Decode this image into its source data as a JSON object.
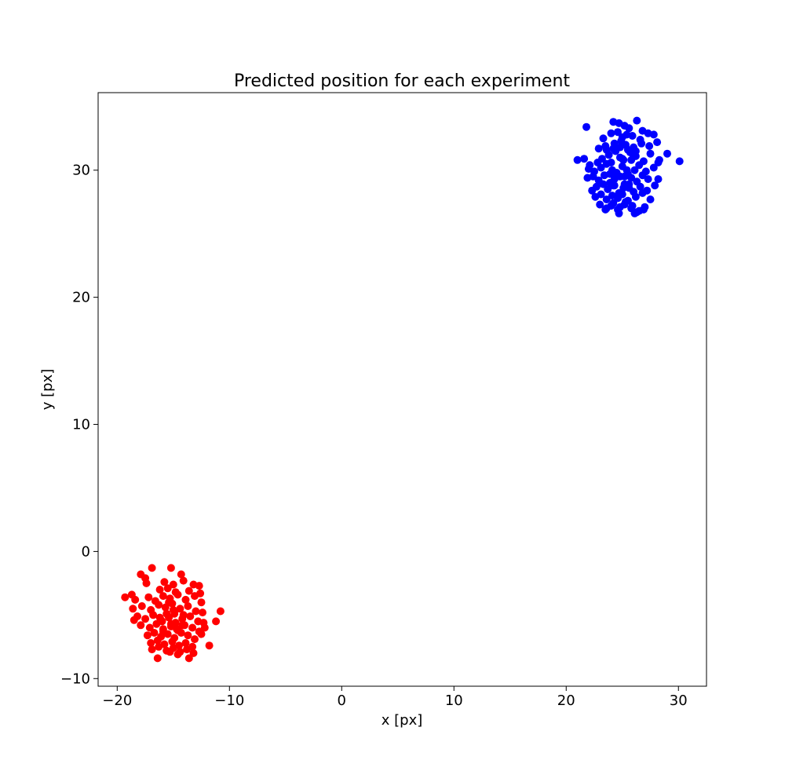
{
  "chart_data": {
    "type": "scatter",
    "title": "Predicted position for each experiment",
    "xlabel": "x [px]",
    "ylabel": "y [px]",
    "xlim": [
      -21.7,
      32.5
    ],
    "ylim": [
      -10.6,
      36.1
    ],
    "xticks": [
      -20,
      -10,
      0,
      10,
      20,
      30
    ],
    "yticks": [
      -10,
      0,
      10,
      20,
      30
    ],
    "xtick_labels": [
      "−20",
      "−10",
      "0",
      "10",
      "20",
      "30"
    ],
    "ytick_labels": [
      "−10",
      "0",
      "10",
      "20",
      "30"
    ],
    "grid": false,
    "series": [
      {
        "color": "#0000ff",
        "x": [
          21.8,
          24.2,
          24.7,
          25.2,
          25.6,
          26.3,
          26.8,
          27.8,
          23.3,
          24.0,
          24.6,
          25.0,
          25.4,
          25.9,
          26.6,
          27.3,
          28.1,
          22.9,
          23.5,
          24.3,
          24.9,
          25.3,
          26.0,
          26.7,
          27.4,
          29.0,
          21.0,
          21.6,
          22.1,
          22.8,
          23.2,
          23.8,
          24.4,
          24.8,
          25.1,
          25.7,
          26.2,
          26.9,
          27.5,
          28.3,
          30.1,
          22.0,
          22.5,
          23.1,
          23.6,
          24.1,
          24.5,
          25.0,
          25.5,
          26.1,
          26.5,
          27.1,
          27.8,
          28.2,
          21.9,
          22.4,
          22.9,
          23.4,
          23.9,
          24.3,
          24.8,
          25.2,
          25.8,
          26.3,
          26.8,
          27.3,
          28.2,
          22.3,
          22.7,
          23.3,
          23.7,
          24.2,
          24.7,
          25.1,
          25.6,
          26.0,
          26.6,
          27.2,
          27.9,
          22.6,
          23.1,
          23.6,
          24.1,
          24.6,
          25.0,
          25.5,
          26.2,
          26.8,
          27.5,
          23.0,
          23.6,
          24.2,
          24.8,
          25.3,
          25.9,
          26.5,
          27.0,
          23.5,
          24.0,
          24.6,
          25.2,
          25.8,
          26.3,
          26.9,
          23.6,
          24.2,
          24.8,
          25.5,
          26.2,
          24.7,
          26.1,
          24.0,
          25.0,
          25.2,
          24.5,
          25.6,
          24.9,
          25.4,
          24.3,
          25.8,
          23.9,
          26.0
        ],
        "y": [
          33.4,
          33.8,
          33.7,
          33.5,
          33.3,
          33.9,
          33.1,
          32.8,
          32.5,
          32.9,
          33.0,
          32.6,
          32.8,
          32.7,
          32.4,
          32.9,
          32.2,
          31.7,
          31.9,
          32.1,
          32.3,
          32.0,
          31.8,
          32.1,
          31.9,
          31.3,
          30.8,
          30.9,
          30.4,
          30.6,
          30.9,
          31.2,
          31.5,
          31.0,
          30.8,
          31.4,
          31.1,
          30.7,
          31.3,
          30.8,
          30.7,
          30.1,
          29.9,
          30.2,
          30.5,
          30.0,
          29.8,
          30.3,
          29.7,
          30.0,
          30.4,
          29.9,
          30.2,
          30.6,
          29.4,
          29.5,
          29.2,
          29.6,
          29.0,
          29.3,
          29.5,
          28.9,
          29.4,
          29.1,
          29.6,
          29.3,
          29.3,
          28.4,
          28.7,
          28.9,
          28.5,
          28.8,
          28.2,
          28.6,
          28.9,
          28.3,
          28.7,
          28.4,
          28.8,
          27.9,
          28.1,
          27.7,
          28.0,
          27.8,
          28.1,
          27.6,
          27.9,
          28.2,
          27.7,
          27.3,
          27.0,
          27.4,
          27.1,
          27.5,
          27.2,
          26.8,
          27.1,
          26.9,
          27.2,
          26.9,
          27.3,
          27.0,
          26.7,
          26.9,
          31.6,
          31.7,
          31.8,
          31.6,
          31.5,
          26.6,
          26.6,
          30.6,
          30.9,
          29.5,
          29.6,
          28.6,
          28.2,
          30.0,
          28.8,
          30.8,
          29.7,
          31.2
        ]
      },
      {
        "color": "#ff0000",
        "x": [
          -15.2,
          -16.9,
          -17.9,
          -17.5,
          -14.3,
          -13.2,
          -17.4,
          -15.8,
          -15.0,
          -14.1,
          -12.7,
          -19.3,
          -18.7,
          -16.2,
          -15.5,
          -14.8,
          -13.6,
          -12.6,
          -18.4,
          -17.2,
          -16.6,
          -15.9,
          -15.3,
          -14.6,
          -13.9,
          -13.1,
          -12.5,
          -10.8,
          -18.6,
          -17.8,
          -17.0,
          -16.3,
          -15.7,
          -15.1,
          -14.4,
          -13.7,
          -13.0,
          -12.4,
          -11.2,
          -18.2,
          -17.5,
          -16.8,
          -16.1,
          -15.4,
          -14.9,
          -14.2,
          -13.5,
          -12.8,
          -12.3,
          -17.9,
          -17.1,
          -16.5,
          -15.9,
          -15.2,
          -14.6,
          -14.0,
          -13.3,
          -12.7,
          -12.2,
          -17.3,
          -16.7,
          -16.1,
          -15.5,
          -14.9,
          -14.3,
          -13.7,
          -13.1,
          -12.5,
          -18.5,
          -17.0,
          -16.4,
          -15.8,
          -15.1,
          -14.5,
          -13.9,
          -13.3,
          -11.8,
          -16.9,
          -16.3,
          -15.6,
          -15.0,
          -14.4,
          -13.8,
          -13.2,
          -16.4,
          -15.3,
          -14.6,
          -13.6,
          -15.6,
          -14.8,
          -16.2,
          -15.0,
          -14.2,
          -14.7,
          -15.4,
          -15.9,
          -14.1,
          -16.0,
          -15.2,
          -14.9
        ],
        "y": [
          -1.3,
          -1.3,
          -1.8,
          -2.1,
          -1.8,
          -2.6,
          -2.5,
          -2.4,
          -2.6,
          -2.3,
          -2.7,
          -3.6,
          -3.4,
          -3.0,
          -2.9,
          -3.2,
          -3.1,
          -3.3,
          -3.8,
          -3.6,
          -3.9,
          -3.5,
          -3.7,
          -3.4,
          -3.8,
          -3.5,
          -4.0,
          -4.7,
          -4.5,
          -4.3,
          -4.6,
          -4.2,
          -4.4,
          -4.1,
          -4.5,
          -4.3,
          -4.7,
          -4.8,
          -5.5,
          -5.1,
          -5.3,
          -5.0,
          -5.4,
          -5.2,
          -4.9,
          -5.3,
          -5.1,
          -5.5,
          -5.6,
          -5.8,
          -6.0,
          -5.7,
          -6.1,
          -5.9,
          -6.2,
          -5.8,
          -6.0,
          -6.3,
          -6.0,
          -6.6,
          -6.4,
          -6.7,
          -6.5,
          -6.8,
          -6.4,
          -6.6,
          -6.9,
          -6.5,
          -5.4,
          -7.2,
          -7.0,
          -7.3,
          -7.1,
          -7.4,
          -7.2,
          -7.5,
          -7.4,
          -7.7,
          -7.5,
          -7.8,
          -7.6,
          -7.9,
          -7.7,
          -8.0,
          -8.4,
          -7.9,
          -8.1,
          -8.4,
          -4.9,
          -5.6,
          -5.2,
          -4.6,
          -5.8,
          -6.1,
          -4.0,
          -6.3,
          -5.0,
          -5.5,
          -5.7,
          -4.7
        ]
      }
    ]
  }
}
